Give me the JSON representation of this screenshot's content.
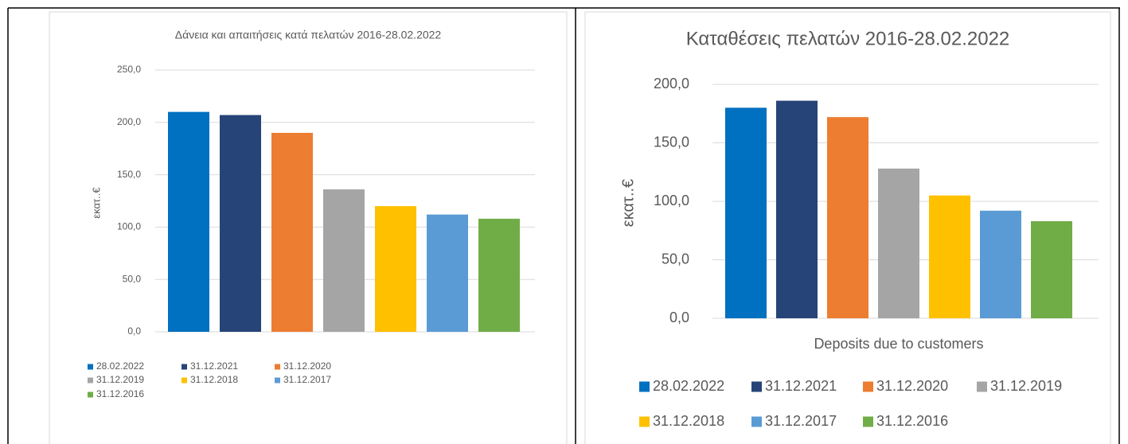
{
  "chart_data": [
    {
      "type": "bar",
      "title": "Δάνεια και απαιτήσεις κατά πελατών 2016-28.02.2022",
      "y_label": "εκατ..€",
      "categories": [
        null
      ],
      "series": [
        {
          "name": "28.02.2022",
          "color": "#0070c0",
          "values": [
            210
          ]
        },
        {
          "name": "31.12.2021",
          "color": "#264478",
          "values": [
            207
          ]
        },
        {
          "name": "31.12.2020",
          "color": "#ed7d31",
          "values": [
            190
          ]
        },
        {
          "name": "31.12.2019",
          "color": "#a5a5a5",
          "values": [
            136
          ]
        },
        {
          "name": "31.12.2018",
          "color": "#ffc000",
          "values": [
            120
          ]
        },
        {
          "name": "31.12.2017",
          "color": "#5b9bd5",
          "values": [
            112
          ]
        },
        {
          "name": "31.12.2016",
          "color": "#70ad47",
          "values": [
            108
          ]
        }
      ],
      "ylim": [
        0,
        250
      ],
      "yticks": [
        {
          "value": 0,
          "label": "0,0"
        },
        {
          "value": 50,
          "label": "50,0"
        },
        {
          "value": 100,
          "label": "100,0"
        },
        {
          "value": 150,
          "label": "150,0"
        },
        {
          "value": 200,
          "label": "200,0"
        },
        {
          "value": 250,
          "label": "250,0"
        }
      ],
      "grid": true,
      "legend": "bottom"
    },
    {
      "type": "bar",
      "title": "Καταθέσεις πελατών 2016-28.02.2022",
      "y_label": "εκατ..€",
      "categories": [
        "Deposits due to customers"
      ],
      "series": [
        {
          "name": "28.02.2022",
          "color": "#0070c0",
          "values": [
            180
          ]
        },
        {
          "name": "31.12.2021",
          "color": "#264478",
          "values": [
            186
          ]
        },
        {
          "name": "31.12.2020",
          "color": "#ed7d31",
          "values": [
            172
          ]
        },
        {
          "name": "31.12.2019",
          "color": "#a5a5a5",
          "values": [
            128
          ]
        },
        {
          "name": "31.12.2018",
          "color": "#ffc000",
          "values": [
            105
          ]
        },
        {
          "name": "31.12.2017",
          "color": "#5b9bd5",
          "values": [
            92
          ]
        },
        {
          "name": "31.12.2016",
          "color": "#70ad47",
          "values": [
            83
          ]
        }
      ],
      "ylim": [
        0,
        200
      ],
      "yticks": [
        {
          "value": 0,
          "label": "0,0"
        },
        {
          "value": 50,
          "label": "50,0"
        },
        {
          "value": 100,
          "label": "100,0"
        },
        {
          "value": 150,
          "label": "150,0"
        },
        {
          "value": 200,
          "label": "200,0"
        }
      ],
      "grid": true,
      "legend": "bottom"
    }
  ]
}
